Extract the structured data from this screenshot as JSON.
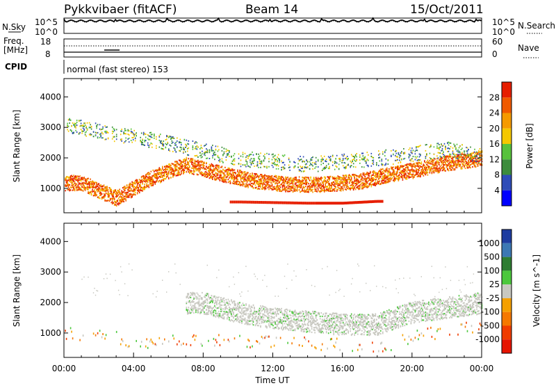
{
  "header": {
    "site": "Pykkvibaer (fitACF)",
    "beam": "Beam 14",
    "date": "15/Oct/2011"
  },
  "noise_panel": {
    "left_label": "N.Sky",
    "right_label": "N.Search",
    "left_ticks": [
      "10^5",
      "10^0"
    ],
    "right_ticks": [
      "10^5",
      "10^0"
    ]
  },
  "freq_panel": {
    "left_label_line1": "Freq.",
    "left_label_line2": "[MHz]",
    "left_ticks": [
      "18",
      "8"
    ],
    "right_label": "Nave",
    "right_ticks": [
      "60",
      "0"
    ]
  },
  "cpid": {
    "label": "CPID",
    "mode": "normal (fast stereo) 153"
  },
  "colors": {
    "power": [
      "#0000ff",
      "#2e4cb8",
      "#3c8c3c",
      "#58c23c",
      "#f5c800",
      "#f59a00",
      "#f05a00",
      "#e61e00"
    ],
    "velocity": [
      "#1e3ca0",
      "#3c78b4",
      "#2e7d32",
      "#4cc83c",
      "#c8c8c0",
      "#f5a000",
      "#f57800",
      "#f03c00",
      "#e61400"
    ],
    "ground_scatter": "#b4b4b4"
  },
  "chart_data": [
    {
      "type": "heatmap",
      "title": "",
      "xlabel": "Time UT",
      "ylabel": "Slant Range [km]",
      "x_ticks": [
        "00:00",
        "04:00",
        "08:00",
        "12:00",
        "16:00",
        "20:00",
        "00:00"
      ],
      "y_ticks": [
        1000,
        2000,
        3000,
        4000
      ],
      "ylim": [
        200,
        4600
      ],
      "xlim_hours": [
        0,
        24
      ],
      "colorbar": {
        "label": "Power [dB]",
        "ticks": [
          4,
          8,
          12,
          16,
          20,
          24,
          28
        ],
        "range": [
          0,
          30
        ]
      },
      "features": [
        {
          "name": "main band",
          "x_hours": [
            1,
            3,
            5,
            7,
            9,
            11,
            13,
            15,
            17,
            18.5,
            20,
            22,
            24
          ],
          "y_km": [
            1200,
            700,
            1350,
            1800,
            1500,
            1250,
            1150,
            1150,
            1250,
            1450,
            1600,
            1850,
            2000
          ],
          "power_db": 22
        },
        {
          "name": "ground scatter band",
          "x_hours": [
            10,
            12,
            14,
            16,
            18
          ],
          "y_km": [
            600,
            580,
            560,
            560,
            620
          ],
          "power_db": 26
        },
        {
          "name": "upper band",
          "x_hours": [
            0,
            3,
            6,
            10,
            14,
            18,
            22,
            24
          ],
          "y_km": [
            3100,
            2800,
            2500,
            2000,
            1800,
            2000,
            2300,
            2100
          ],
          "power_db": 12
        }
      ]
    },
    {
      "type": "heatmap",
      "title": "",
      "xlabel": "Time UT",
      "ylabel": "Slant Range [km]",
      "x_ticks": [
        "00:00",
        "04:00",
        "08:00",
        "12:00",
        "16:00",
        "20:00",
        "00:00"
      ],
      "y_ticks": [
        1000,
        2000,
        3000,
        4000
      ],
      "ylim": [
        200,
        4600
      ],
      "xlim_hours": [
        0,
        24
      ],
      "colorbar": {
        "label": "Velocity [m s^-1]",
        "ticks": [
          "1000",
          "500",
          "100",
          "25",
          "-25",
          "-100",
          "-500",
          "-1000"
        ],
        "range": [
          -1200,
          1200
        ]
      },
      "features": [
        {
          "name": "ground scatter band",
          "x_hours": [
            8,
            10,
            12,
            14,
            16,
            18,
            20,
            24
          ],
          "y_km": [
            2000,
            1700,
            1500,
            1400,
            1300,
            1300,
            1700,
            2000
          ],
          "velocity_ms": 0
        },
        {
          "name": "evening low-range echoes",
          "x_hours": [
            0.5,
            2.5,
            4,
            6,
            18.5,
            20,
            23
          ],
          "y_km": [
            1000,
            1000,
            600,
            850,
            600,
            900,
            1200
          ],
          "velocity_ms": -200
        }
      ]
    }
  ]
}
